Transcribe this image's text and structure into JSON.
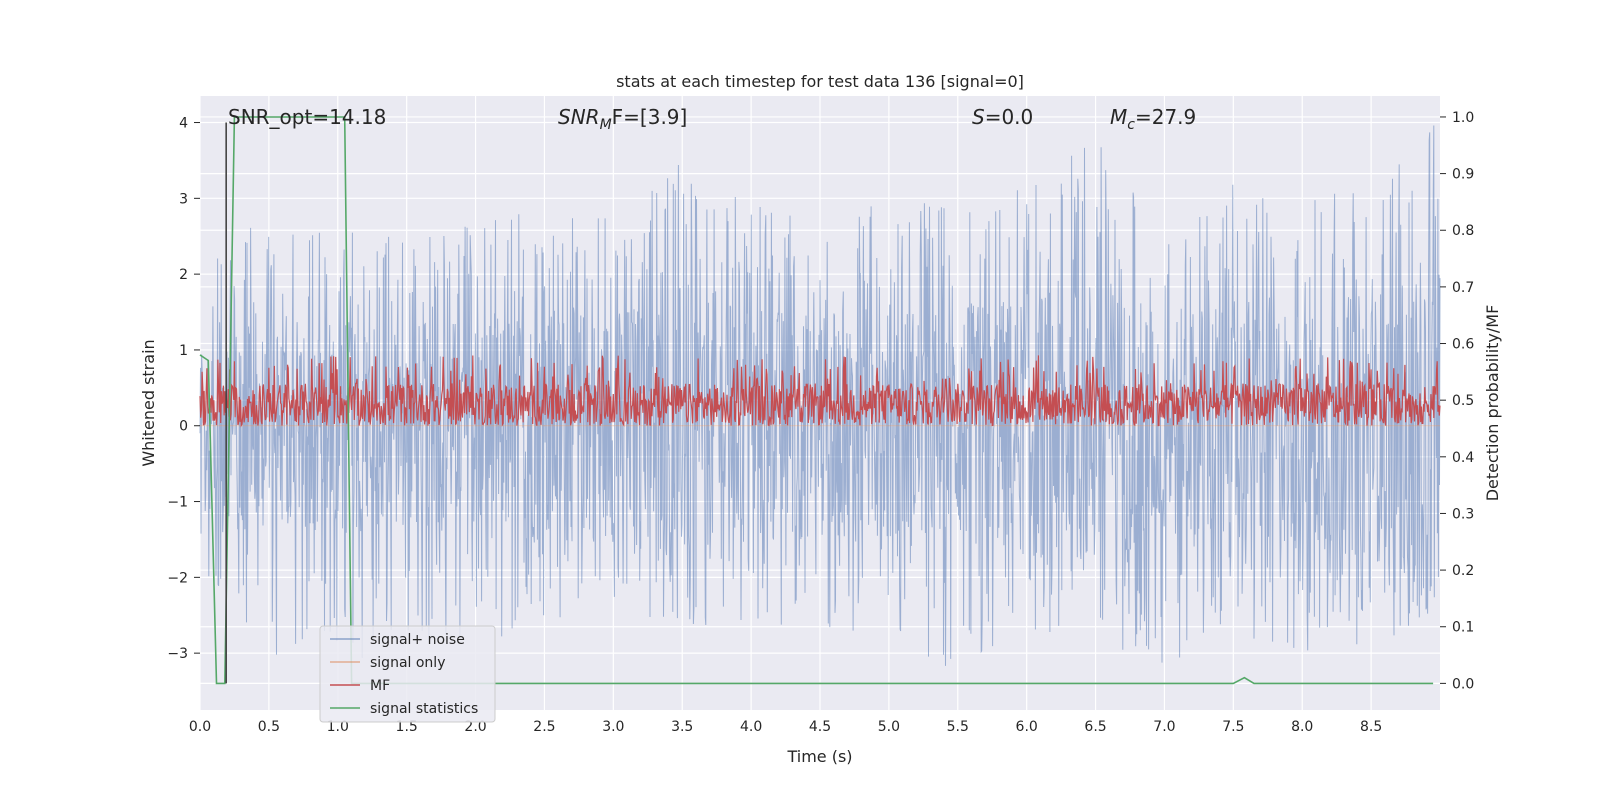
{
  "chart_data": {
    "type": "line",
    "title": "stats at each timestep for test data 136 [signal=0]",
    "xlabel": "Time (s)",
    "ylabel": "Whitened strain",
    "ylabel_right": "Detection probability/MF",
    "xlim": [
      0.0,
      9.0
    ],
    "ylim": [
      -3.75,
      4.35
    ],
    "ylim_right": [
      -0.047,
      1.037
    ],
    "x_ticks": [
      0.0,
      0.5,
      1.0,
      1.5,
      2.0,
      2.5,
      3.0,
      3.5,
      4.0,
      4.5,
      5.0,
      5.5,
      6.0,
      6.5,
      7.0,
      7.5,
      8.0,
      8.5
    ],
    "x_tick_labels": [
      "0.0",
      "0.5",
      "1.0",
      "1.5",
      "2.0",
      "2.5",
      "3.0",
      "3.5",
      "4.0",
      "4.5",
      "5.0",
      "5.5",
      "6.0",
      "6.5",
      "7.0",
      "7.5",
      "8.0",
      "8.5"
    ],
    "y_ticks": [
      -3,
      -2,
      -1,
      0,
      1,
      2,
      3,
      4
    ],
    "y_tick_labels": [
      "−3",
      "−2",
      "−1",
      "0",
      "1",
      "2",
      "3",
      "4"
    ],
    "y_right_ticks": [
      0.0,
      0.1,
      0.2,
      0.3,
      0.4,
      0.5,
      0.6,
      0.7,
      0.8,
      0.9,
      1.0
    ],
    "y_right_tick_labels": [
      "0.0",
      "0.1",
      "0.2",
      "0.3",
      "0.4",
      "0.5",
      "0.6",
      "0.7",
      "0.8",
      "0.9",
      "1.0"
    ],
    "grid": true,
    "legend_placement": "lower-left",
    "annotations": {
      "snr_opt": "SNR_opt=14.18",
      "snr_mf_main": "SNR",
      "snr_mf_sub": "M",
      "snr_mf_rest": "F=[3.9]",
      "s_main": "S",
      "s_rest": "=0.0",
      "mc_main": "M",
      "mc_sub": "c",
      "mc_rest": "=27.9"
    },
    "vertical_marker_x": 0.19,
    "series": [
      {
        "name": "signal+ noise",
        "color": "#4c72b0",
        "axis": "left",
        "render": "noise",
        "envelope_upper": [
          [
            0.0,
            2.0
          ],
          [
            0.5,
            2.9
          ],
          [
            1.0,
            2.6
          ],
          [
            1.5,
            2.5
          ],
          [
            2.0,
            2.7
          ],
          [
            2.5,
            2.9
          ],
          [
            3.0,
            2.8
          ],
          [
            3.5,
            3.5
          ],
          [
            4.0,
            3.0
          ],
          [
            4.5,
            2.7
          ],
          [
            5.0,
            3.0
          ],
          [
            5.5,
            2.9
          ],
          [
            6.0,
            3.2
          ],
          [
            6.5,
            3.8
          ],
          [
            7.0,
            2.7
          ],
          [
            7.5,
            3.2
          ],
          [
            8.0,
            3.0
          ],
          [
            8.5,
            3.2
          ],
          [
            8.9,
            4.0
          ]
        ],
        "envelope_lower": [
          [
            0.0,
            -2.0
          ],
          [
            0.5,
            -3.0
          ],
          [
            1.0,
            -3.2
          ],
          [
            1.5,
            -2.9
          ],
          [
            2.0,
            -2.8
          ],
          [
            2.5,
            -2.8
          ],
          [
            3.0,
            -2.7
          ],
          [
            3.5,
            -2.6
          ],
          [
            4.0,
            -2.7
          ],
          [
            4.5,
            -3.0
          ],
          [
            5.0,
            -2.8
          ],
          [
            5.5,
            -3.3
          ],
          [
            6.0,
            -2.7
          ],
          [
            6.5,
            -2.9
          ],
          [
            7.0,
            -3.2
          ],
          [
            7.5,
            -2.9
          ],
          [
            8.0,
            -3.0
          ],
          [
            8.5,
            -2.9
          ],
          [
            8.9,
            -2.6
          ]
        ]
      },
      {
        "name": "signal only",
        "color": "#dd8452",
        "axis": "left",
        "render": "flat",
        "value": 0.0
      },
      {
        "name": "MF",
        "color": "#c44e52",
        "axis": "left",
        "render": "noise_band",
        "center": 0.28,
        "min": 0.0,
        "max": 0.95
      },
      {
        "name": "signal statistics",
        "color": "#55a868",
        "axis": "right",
        "render": "line",
        "points": [
          [
            0.0,
            0.58
          ],
          [
            0.06,
            0.57
          ],
          [
            0.12,
            0.0
          ],
          [
            0.18,
            0.0
          ],
          [
            0.25,
            1.0
          ],
          [
            1.05,
            1.0
          ],
          [
            1.1,
            0.0
          ],
          [
            1.2,
            0.0
          ],
          [
            7.5,
            0.0
          ],
          [
            7.58,
            0.01
          ],
          [
            7.65,
            0.0
          ],
          [
            8.95,
            0.0
          ]
        ]
      }
    ]
  }
}
